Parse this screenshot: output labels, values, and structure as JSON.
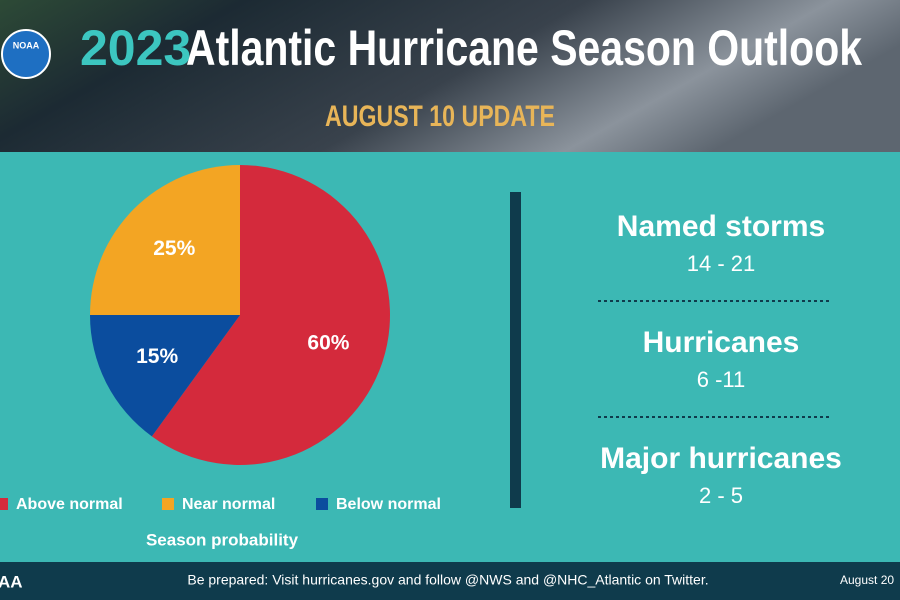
{
  "header": {
    "logo": "NOAA",
    "title_year": "2023",
    "title": "Atlantic Hurricane Season Outlook",
    "subtitle": "AUGUST 10 UPDATE"
  },
  "chart_data": {
    "type": "pie",
    "categories": [
      "Above normal",
      "Near normal",
      "Below normal"
    ],
    "values": [
      60,
      25,
      15
    ],
    "value_labels": [
      "60%",
      "25%",
      "15%"
    ],
    "colors": [
      "#d42a3c",
      "#f3a523",
      "#0b4d9e"
    ],
    "legend_title": "Season probability"
  },
  "stats": [
    {
      "label": "Named storms",
      "value": "14 - 21"
    },
    {
      "label": "Hurricanes",
      "value": "6 -11"
    },
    {
      "label": "Major hurricanes",
      "value": "2 - 5"
    }
  ],
  "footer": {
    "left": "AA",
    "text": "Be prepared: Visit hurricanes.gov and follow @NWS and @NHC_Atlantic on Twitter.",
    "right": "August 20"
  }
}
